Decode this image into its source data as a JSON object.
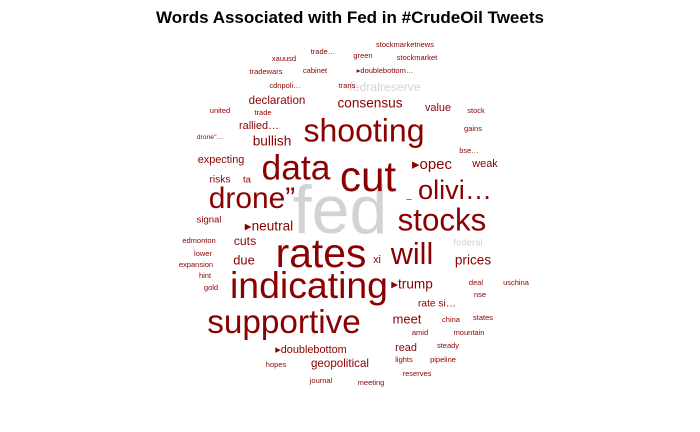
{
  "chart_data": {
    "type": "wordcloud",
    "title": "Words Associated with Fed in #CrudeOil Tweets",
    "colors": {
      "main": "#8b0000",
      "muted": "#d3d3d3"
    },
    "words": [
      {
        "text": "fed",
        "weight": 100,
        "color": "#d3d3d3"
      },
      {
        "text": "cut",
        "weight": 62,
        "color": "#8b0000"
      },
      {
        "text": "rates",
        "weight": 60,
        "color": "#8b0000"
      },
      {
        "text": "indicating",
        "weight": 55,
        "color": "#8b0000"
      },
      {
        "text": "data",
        "weight": 52,
        "color": "#8b0000"
      },
      {
        "text": "supportive",
        "weight": 49,
        "color": "#8b0000"
      },
      {
        "text": "shooting",
        "weight": 47,
        "color": "#8b0000"
      },
      {
        "text": "stocks",
        "weight": 46,
        "color": "#8b0000"
      },
      {
        "text": "will",
        "weight": 45,
        "color": "#8b0000"
      },
      {
        "text": "drone”",
        "weight": 44,
        "color": "#8b0000"
      },
      {
        "text": "olivi…",
        "weight": 40,
        "color": "#8b0000"
      },
      {
        "text": "▸opec",
        "weight": 22,
        "color": "#8b0000"
      },
      {
        "text": "▸neutral",
        "weight": 20,
        "color": "#8b0000"
      },
      {
        "text": "▸trump",
        "weight": 20,
        "color": "#8b0000"
      },
      {
        "text": "bullish",
        "weight": 20,
        "color": "#8b0000"
      },
      {
        "text": "consensus",
        "weight": 20,
        "color": "#8b0000"
      },
      {
        "text": "prices",
        "weight": 20,
        "color": "#8b0000"
      },
      {
        "text": "meet",
        "weight": 19,
        "color": "#8b0000"
      },
      {
        "text": "due",
        "weight": 19,
        "color": "#8b0000"
      },
      {
        "text": "cuts",
        "weight": 18,
        "color": "#8b0000"
      },
      {
        "text": "fedralreserve",
        "weight": 18,
        "color": "#d3d3d3"
      },
      {
        "text": "geopolitical",
        "weight": 17,
        "color": "#8b0000"
      },
      {
        "text": "declaration",
        "weight": 17,
        "color": "#8b0000"
      },
      {
        "text": "value",
        "weight": 16,
        "color": "#8b0000"
      },
      {
        "text": "weak",
        "weight": 16,
        "color": "#8b0000"
      },
      {
        "text": "▸doublebottom",
        "weight": 16,
        "color": "#8b0000"
      },
      {
        "text": "rallied…",
        "weight": 16,
        "color": "#8b0000"
      },
      {
        "text": "expecting",
        "weight": 16,
        "color": "#8b0000"
      },
      {
        "text": "read",
        "weight": 16,
        "color": "#8b0000"
      },
      {
        "text": "xi",
        "weight": 16,
        "color": "#8b0000"
      },
      {
        "text": "rate si…",
        "weight": 15,
        "color": "#8b0000"
      },
      {
        "text": "risks",
        "weight": 15,
        "color": "#8b0000"
      },
      {
        "text": "signal",
        "weight": 14,
        "color": "#8b0000"
      },
      {
        "text": "federal",
        "weight": 14,
        "color": "#d3d3d3"
      },
      {
        "text": "ta",
        "weight": 14,
        "color": "#8b0000"
      },
      {
        "text": "–",
        "weight": 14,
        "color": "#8b0000"
      },
      {
        "text": "stockmarketnews",
        "weight": 11,
        "color": "#8b0000"
      },
      {
        "text": "stockmarket",
        "weight": 11,
        "color": "#8b0000"
      },
      {
        "text": "green",
        "weight": 11,
        "color": "#8b0000"
      },
      {
        "text": "trade…",
        "weight": 11,
        "color": "#8b0000"
      },
      {
        "text": "xauusd",
        "weight": 11,
        "color": "#8b0000"
      },
      {
        "text": "tradewars",
        "weight": 11,
        "color": "#8b0000"
      },
      {
        "text": "cabinet",
        "weight": 11,
        "color": "#8b0000"
      },
      {
        "text": "▸doublebottom…",
        "weight": 11,
        "color": "#8b0000"
      },
      {
        "text": "cdnpoli…",
        "weight": 11,
        "color": "#8b0000"
      },
      {
        "text": "trans",
        "weight": 11,
        "color": "#8b0000"
      },
      {
        "text": "united",
        "weight": 11,
        "color": "#8b0000"
      },
      {
        "text": "trade",
        "weight": 11,
        "color": "#8b0000"
      },
      {
        "text": "stock",
        "weight": 11,
        "color": "#8b0000"
      },
      {
        "text": "gains",
        "weight": 11,
        "color": "#8b0000"
      },
      {
        "text": "drone\"…",
        "weight": 10,
        "color": "#8b0000"
      },
      {
        "text": "bse…",
        "weight": 11,
        "color": "#8b0000"
      },
      {
        "text": "edmonton",
        "weight": 11,
        "color": "#8b0000"
      },
      {
        "text": "lower",
        "weight": 11,
        "color": "#8b0000"
      },
      {
        "text": "expansion",
        "weight": 11,
        "color": "#8b0000"
      },
      {
        "text": "hint",
        "weight": 11,
        "color": "#8b0000"
      },
      {
        "text": "gold",
        "weight": 11,
        "color": "#8b0000"
      },
      {
        "text": "deal",
        "weight": 11,
        "color": "#8b0000"
      },
      {
        "text": "uschina",
        "weight": 11,
        "color": "#8b0000"
      },
      {
        "text": "nse",
        "weight": 11,
        "color": "#8b0000"
      },
      {
        "text": "states",
        "weight": 11,
        "color": "#8b0000"
      },
      {
        "text": "china",
        "weight": 11,
        "color": "#8b0000"
      },
      {
        "text": "amid",
        "weight": 11,
        "color": "#8b0000"
      },
      {
        "text": "mountain",
        "weight": 11,
        "color": "#8b0000"
      },
      {
        "text": "steady",
        "weight": 11,
        "color": "#8b0000"
      },
      {
        "text": "lights",
        "weight": 11,
        "color": "#8b0000"
      },
      {
        "text": "pipeline",
        "weight": 11,
        "color": "#8b0000"
      },
      {
        "text": "hopes",
        "weight": 11,
        "color": "#8b0000"
      },
      {
        "text": "reserves",
        "weight": 11,
        "color": "#8b0000"
      },
      {
        "text": "journal",
        "weight": 11,
        "color": "#8b0000"
      },
      {
        "text": "meeting",
        "weight": 11,
        "color": "#8b0000"
      }
    ]
  }
}
